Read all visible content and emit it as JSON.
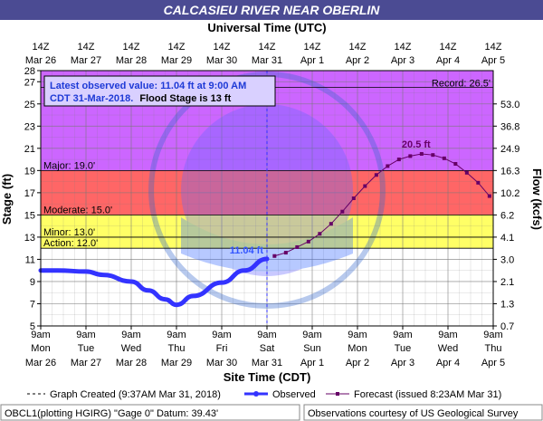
{
  "title": "CALCASIEU RIVER NEAR OBERLIN",
  "top_axis_label": "Universal Time (UTC)",
  "bottom_axis_label": "Site Time (CDT)",
  "left_axis_label": "Stage (ft)",
  "right_axis_label": "Flow (kcfs)",
  "observed_box": {
    "line1": "Latest observed value: 11.04 ft at 9:00 AM",
    "line2_date": "CDT 31-Mar-2018.",
    "line2_flood": "Flood Stage is 13 ft"
  },
  "footer": {
    "created": "Graph Created (9:37AM Mar 31, 2018)",
    "observed_label": "Observed",
    "forecast_label": "Forecast (issued 8:23AM Mar 31)",
    "datum": "OBCL1(plotting HGIRG) \"Gage 0\" Datum: 39.43'",
    "courtesy": "Observations courtesy of US Geological Survey"
  },
  "colors": {
    "record_band": "#cc66ff",
    "major_band": "#ff6666",
    "moderate_band": "#ffcc66",
    "minor_band": "#ffff66",
    "normal_band": "#ffffff",
    "observed_line": "#3333ff",
    "forecast_line": "#660066",
    "title_bg": "#4b4b93"
  },
  "chart_data": {
    "type": "line",
    "ylim": [
      5,
      28
    ],
    "y_ticks": [
      "5",
      "7",
      "9",
      "11",
      "13",
      "15",
      "17",
      "19",
      "21",
      "23",
      "25",
      "27",
      "28"
    ],
    "right_ticks": [
      {
        "stage": 5,
        "label": "0.7"
      },
      {
        "stage": 7,
        "label": "1.3"
      },
      {
        "stage": 9,
        "label": "2.1"
      },
      {
        "stage": 11,
        "label": "3.0"
      },
      {
        "stage": 13,
        "label": "4.1"
      },
      {
        "stage": 15,
        "label": "6.2"
      },
      {
        "stage": 17,
        "label": "10.2"
      },
      {
        "stage": 19,
        "label": "16.3"
      },
      {
        "stage": 21,
        "label": "24.9"
      },
      {
        "stage": 23,
        "label": "36.8"
      },
      {
        "stage": 25,
        "label": "53.0"
      }
    ],
    "x_days": [
      {
        "top_time": "14Z",
        "top_date": "Mar 26",
        "time": "9am",
        "day": "Mon",
        "date": "Mar 26"
      },
      {
        "top_time": "14Z",
        "top_date": "Mar 27",
        "time": "9am",
        "day": "Tue",
        "date": "Mar 27"
      },
      {
        "top_time": "14Z",
        "top_date": "Mar 28",
        "time": "9am",
        "day": "Wed",
        "date": "Mar 28"
      },
      {
        "top_time": "14Z",
        "top_date": "Mar 29",
        "time": "9am",
        "day": "Thu",
        "date": "Mar 29"
      },
      {
        "top_time": "14Z",
        "top_date": "Mar 30",
        "time": "9am",
        "day": "Fri",
        "date": "Mar 30"
      },
      {
        "top_time": "14Z",
        "top_date": "Mar 31",
        "time": "9am",
        "day": "Sat",
        "date": "Mar 31"
      },
      {
        "top_time": "14Z",
        "top_date": "Apr 1",
        "time": "9am",
        "day": "Sun",
        "date": "Apr 1"
      },
      {
        "top_time": "14Z",
        "top_date": "Apr 2",
        "time": "9am",
        "day": "Mon",
        "date": "Apr 2"
      },
      {
        "top_time": "14Z",
        "top_date": "Apr 3",
        "time": "9am",
        "day": "Tue",
        "date": "Apr 3"
      },
      {
        "top_time": "14Z",
        "top_date": "Apr 4",
        "time": "9am",
        "day": "Wed",
        "date": "Apr 4"
      },
      {
        "top_time": "14Z",
        "top_date": "Apr 5",
        "time": "9am",
        "day": "Thu",
        "date": "Apr 5"
      }
    ],
    "thresholds": [
      {
        "name": "Record",
        "label": "Record: 26.5'",
        "value": 26.5
      },
      {
        "name": "Major",
        "label": "Major: 19.0'",
        "value": 19.0
      },
      {
        "name": "Moderate",
        "label": "Moderate: 15.0'",
        "value": 15.0
      },
      {
        "name": "Minor",
        "label": "Minor: 13.0'",
        "value": 13.0
      },
      {
        "name": "Action",
        "label": "Action: 12.0'",
        "value": 12.0
      }
    ],
    "series": [
      {
        "name": "Observed",
        "x": [
          "2018-03-26 09:00",
          "2018-03-26 18:00",
          "2018-03-27 09:00",
          "2018-03-27 18:00",
          "2018-03-28 09:00",
          "2018-03-28 18:00",
          "2018-03-29 03:00",
          "2018-03-29 09:00",
          "2018-03-29 18:00",
          "2018-03-30 09:00",
          "2018-03-30 21:00",
          "2018-03-31 09:00"
        ],
        "values": [
          10.0,
          10.0,
          9.9,
          9.6,
          9.0,
          8.2,
          7.4,
          6.9,
          7.7,
          8.9,
          10.0,
          11.04
        ]
      },
      {
        "name": "Forecast",
        "x": [
          "2018-03-31 13:00",
          "2018-03-31 19:00",
          "2018-04-01 01:00",
          "2018-04-01 07:00",
          "2018-04-01 13:00",
          "2018-04-01 19:00",
          "2018-04-02 01:00",
          "2018-04-02 07:00",
          "2018-04-02 13:00",
          "2018-04-02 19:00",
          "2018-04-03 01:00",
          "2018-04-03 07:00",
          "2018-04-03 13:00",
          "2018-04-03 19:00",
          "2018-04-04 01:00",
          "2018-04-04 07:00",
          "2018-04-04 13:00",
          "2018-04-04 19:00",
          "2018-04-05 01:00",
          "2018-04-05 07:00"
        ],
        "values": [
          11.3,
          11.6,
          12.1,
          12.6,
          13.3,
          14.2,
          15.3,
          16.5,
          17.6,
          18.6,
          19.4,
          20.0,
          20.3,
          20.5,
          20.4,
          20.1,
          19.6,
          18.8,
          17.9,
          16.7
        ]
      }
    ],
    "peak_label": "20.5 ft",
    "current_label": "11.04 ft",
    "current_time": "2018-03-31 09:00"
  }
}
